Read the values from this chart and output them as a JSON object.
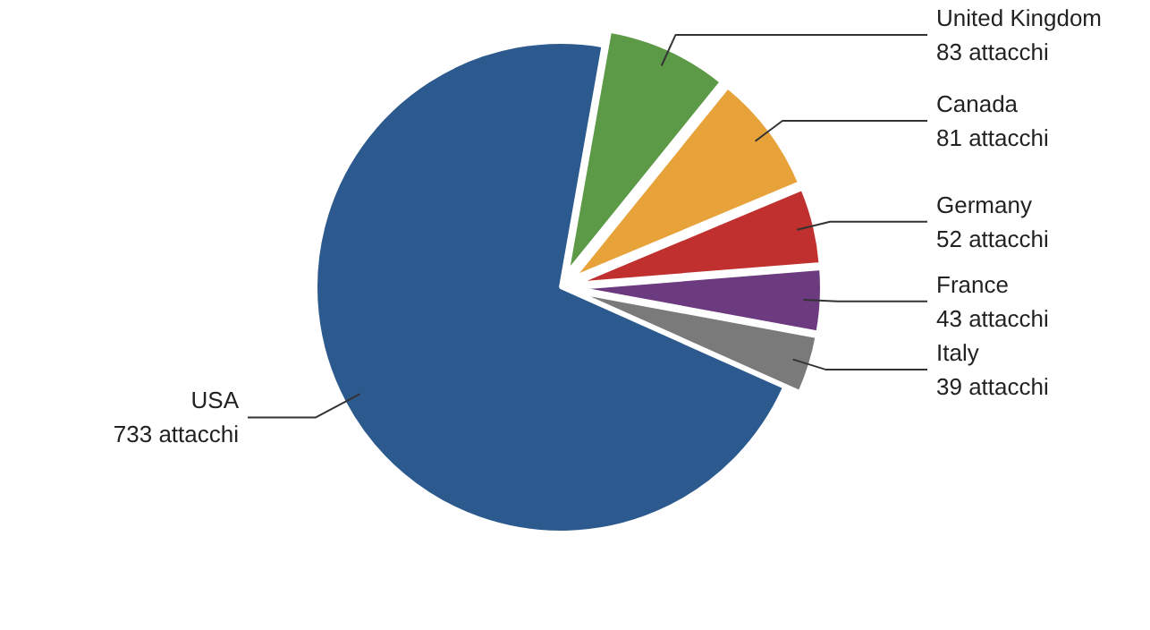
{
  "chart_data": {
    "type": "pie",
    "categories": [
      "United Kingdom",
      "Canada",
      "Germany",
      "France",
      "Italy",
      "USA"
    ],
    "values": [
      83,
      81,
      52,
      43,
      39,
      733
    ],
    "value_labels": [
      "83 attacchi",
      "81 attacchi",
      "52 attacchi",
      "43 attacchi",
      "39 attacchi",
      "733 attacchi"
    ],
    "colors": [
      "#5c9a47",
      "#e8a23a",
      "#c0302e",
      "#6c3a7e",
      "#7a7a7a",
      "#2d5a8e"
    ]
  }
}
